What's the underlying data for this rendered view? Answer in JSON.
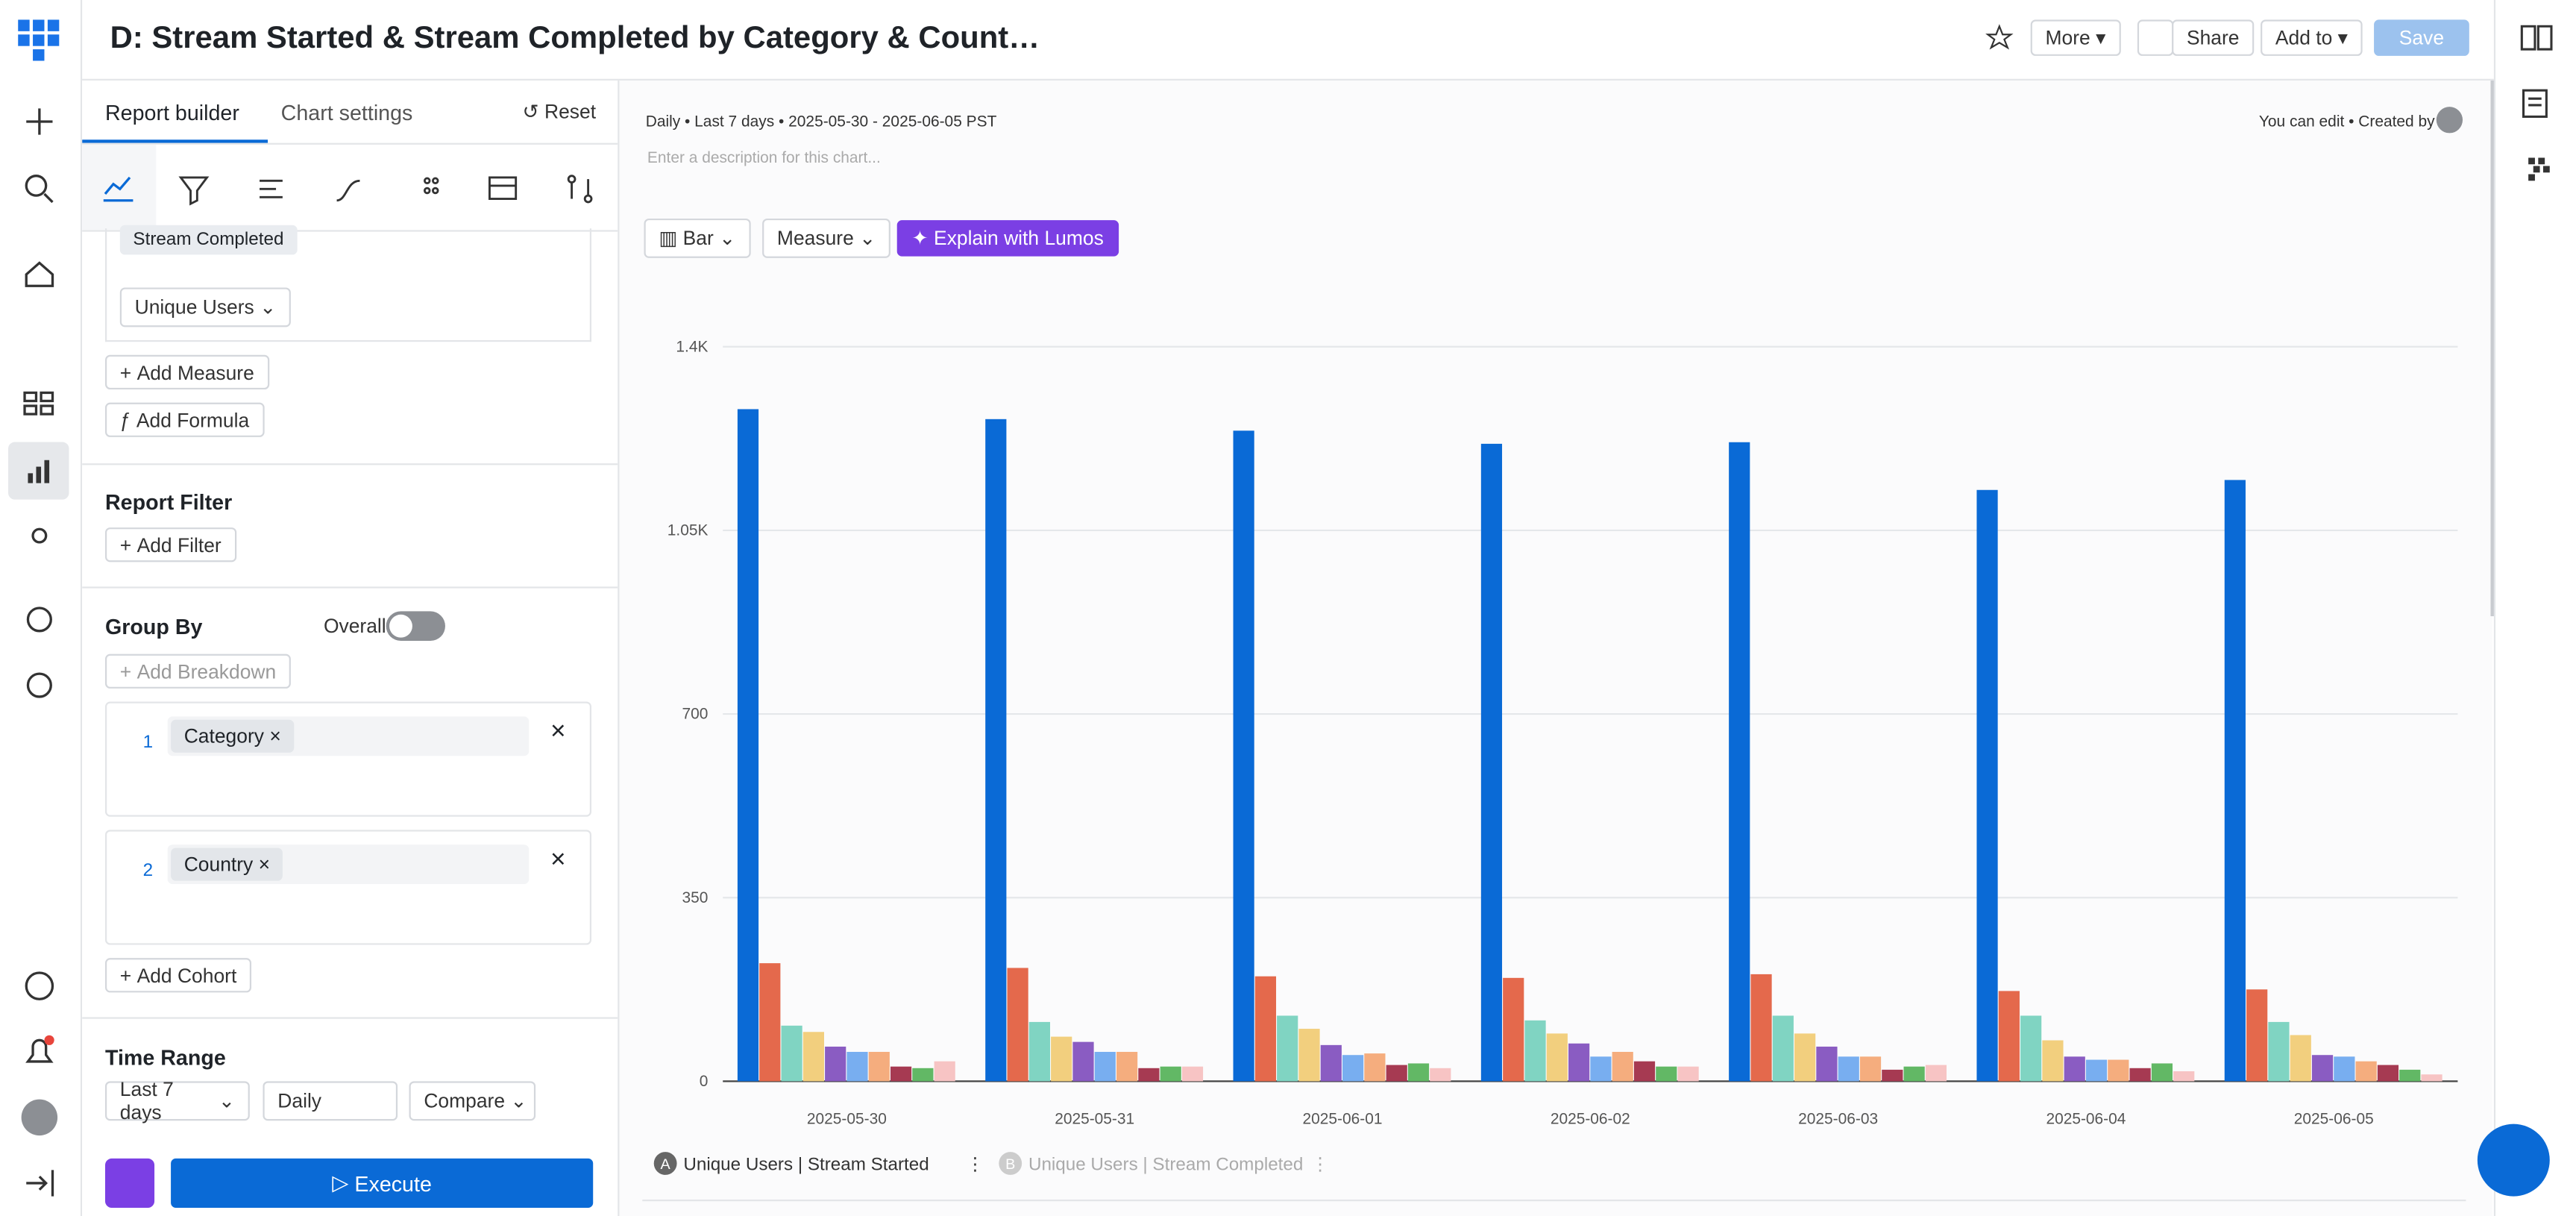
{
  "header": {
    "title": "D: Stream Started & Stream Completed by Category & Count…",
    "more": "More",
    "share": "Share",
    "add_to": "Add to",
    "save": "Save"
  },
  "tabs": [
    "Report builder",
    "Chart settings"
  ],
  "reset": "Reset",
  "builder": {
    "partial_event": "Stream Completed",
    "measure": "Unique Users",
    "add_measure": "Add Measure",
    "add_formula": "Add Formula",
    "report_filter": "Report Filter",
    "add_filter": "Add Filter",
    "group_by": "Group By",
    "overall": "Overall",
    "add_breakdown": "Add Breakdown",
    "breakdowns": [
      {
        "index": "1",
        "label": "Category"
      },
      {
        "index": "2",
        "label": "Country"
      }
    ],
    "add_cohort": "Add Cohort",
    "time_range": "Time Range",
    "range": "Last 7 days",
    "interval": "Daily",
    "compare": "Compare",
    "execute": "Execute"
  },
  "chart_header": {
    "meta": "Daily • Last 7 days • 2025-05-30 - 2025-06-05 PST",
    "edit": "You can edit • Created by",
    "description": "Enter a description for this chart...",
    "chart_type": "Bar",
    "measure": "Measure",
    "lumos": "Explain with Lumos"
  },
  "legend": [
    {
      "letter": "A",
      "label": "Unique Users | Stream Started"
    },
    {
      "letter": "B",
      "label": "Unique Users | Stream Completed"
    }
  ],
  "chart_data": {
    "type": "bar",
    "categories": [
      "2025-05-30",
      "2025-05-31",
      "2025-06-01",
      "2025-06-02",
      "2025-06-03",
      "2025-06-04",
      "2025-06-05"
    ],
    "ylim": [
      0,
      1400
    ],
    "yticks": [
      0,
      350,
      700,
      {
        "value": 1050,
        "label": "1.05K"
      },
      {
        "value": 1400,
        "label": "1.4K"
      }
    ],
    "grid": true,
    "series": [
      {
        "color": "#0a6ad6",
        "values": [
          1281,
          1262,
          1240,
          1215,
          1218,
          1127,
          1146
        ]
      },
      {
        "color": "#e4694c",
        "values": [
          225,
          216,
          200,
          197,
          204,
          172,
          175
        ]
      },
      {
        "color": "#80d4c2",
        "values": [
          106,
          113,
          125,
          116,
          125,
          125,
          113
        ]
      },
      {
        "color": "#f2cf7e",
        "values": [
          94,
          85,
          100,
          91,
          91,
          78,
          88
        ]
      },
      {
        "color": "#8a5cc2",
        "values": [
          66,
          75,
          69,
          72,
          66,
          47,
          50
        ]
      },
      {
        "color": "#78aef0",
        "values": [
          56,
          56,
          50,
          47,
          47,
          41,
          47
        ]
      },
      {
        "color": "#f5ad7e",
        "values": [
          56,
          56,
          53,
          56,
          47,
          41,
          38
        ]
      },
      {
        "color": "#a63a52",
        "values": [
          28,
          25,
          31,
          38,
          22,
          25,
          31
        ]
      },
      {
        "color": "#62b865",
        "values": [
          25,
          28,
          34,
          28,
          28,
          34,
          22
        ]
      },
      {
        "color": "#f7c4c4",
        "values": [
          38,
          28,
          25,
          28,
          31,
          19,
          13
        ]
      }
    ]
  }
}
